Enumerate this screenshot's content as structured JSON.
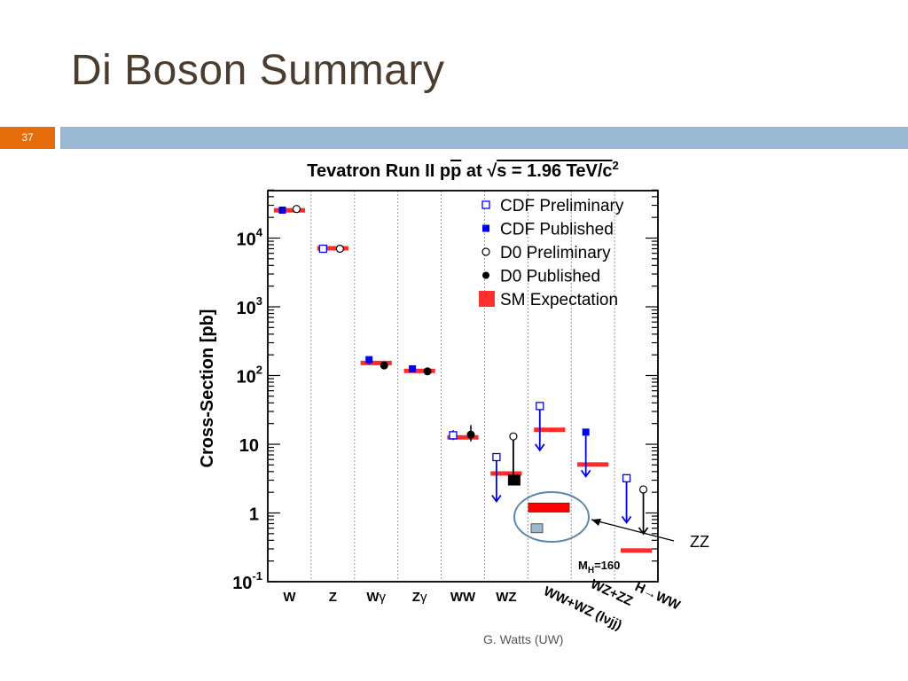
{
  "slide": {
    "title": "Di Boson Summary",
    "slide_number": "37",
    "credit": "G. Watts (UW)",
    "annotation": "ZZ",
    "accent_color": "#e46c0a",
    "bar_color": "#9ab8d1"
  },
  "chart_data": {
    "type": "scatter",
    "title_parts": [
      "Tevatron Run II p",
      "p",
      " at ",
      "s = 1.96 TeV/c",
      "2"
    ],
    "ylabel": "Cross-Section [pb]",
    "yscale": "log",
    "ylim": [
      0.1,
      50000
    ],
    "yticks": [
      {
        "value": 10000,
        "base": "10",
        "exp": "4"
      },
      {
        "value": 1000,
        "base": "10",
        "exp": "3"
      },
      {
        "value": 100,
        "base": "10",
        "exp": "2"
      },
      {
        "value": 10,
        "base": "10",
        "exp": ""
      },
      {
        "value": 1,
        "base": "1",
        "exp": ""
      },
      {
        "value": 0.1,
        "base": "10",
        "exp": "-1"
      }
    ],
    "categories": [
      {
        "label": "W",
        "sub": ""
      },
      {
        "label": "Z",
        "sub": ""
      },
      {
        "label": "W",
        "sub": "γ"
      },
      {
        "label": "Z",
        "sub": "γ"
      },
      {
        "label": "WW",
        "sub": ""
      },
      {
        "label": "WZ",
        "sub": ""
      },
      {
        "label": "WW+WZ (lνjj)",
        "sub": ""
      },
      {
        "label": "WZ+ZZ",
        "sub": ""
      },
      {
        "label": "H→WW",
        "sub": ""
      }
    ],
    "legend": [
      {
        "label": "CDF Preliminary",
        "marker": "open-square"
      },
      {
        "label": "CDF Published",
        "marker": "filled-square"
      },
      {
        "label": "D0 Preliminary",
        "marker": "open-circle"
      },
      {
        "label": "D0 Published",
        "marker": "filled-circle"
      },
      {
        "label": "SM Expectation",
        "marker": "red-box"
      }
    ],
    "legend_position": "top-right",
    "sm_expectation": [
      {
        "category": 0,
        "value": 25000
      },
      {
        "category": 1,
        "value": 7000
      },
      {
        "category": 2,
        "value": 150
      },
      {
        "category": 3,
        "value": 115
      },
      {
        "category": 4,
        "value": 12.4
      },
      {
        "category": 5,
        "value": 3.7
      },
      {
        "category": 6,
        "value": 16
      },
      {
        "category": 7,
        "value": 5
      },
      {
        "category": 8,
        "value": 0.28
      }
    ],
    "zz_expectation": [
      {
        "category": 6,
        "value": 1.2
      }
    ],
    "zz_cdf": [
      {
        "category": 6,
        "value": 0.6
      }
    ],
    "higgs_label": "M_H=160",
    "series": [
      {
        "name": "CDF Preliminary",
        "marker": "open-square",
        "points": [
          {
            "category": 1,
            "value": 7000
          },
          {
            "category": 4,
            "value": 13.5,
            "err": [
              11.5,
              16
            ]
          },
          {
            "category": 5,
            "value": 6.5,
            "limit": true
          },
          {
            "category": 6,
            "value": 36,
            "limit": true
          },
          {
            "category": 8,
            "value": 3.2,
            "limit": true
          }
        ]
      },
      {
        "name": "CDF Published",
        "marker": "filled-square",
        "points": [
          {
            "category": 0,
            "value": 25500
          },
          {
            "category": 2,
            "value": 170,
            "err": [
              145,
              190
            ]
          },
          {
            "category": 3,
            "value": 125
          },
          {
            "category": 7,
            "value": 15,
            "limit": true
          }
        ]
      },
      {
        "name": "D0 Preliminary",
        "marker": "open-circle",
        "points": [
          {
            "category": 0,
            "value": 26500
          },
          {
            "category": 1,
            "value": 7000
          },
          {
            "category": 5,
            "value": 13,
            "limit": true
          },
          {
            "category": 8,
            "value": 2.2,
            "limit": true
          }
        ]
      },
      {
        "name": "D0 Published",
        "marker": "filled-circle",
        "points": [
          {
            "category": 2,
            "value": 140
          },
          {
            "category": 3,
            "value": 115
          },
          {
            "category": 4,
            "value": 13.8,
            "err": [
              11,
              19
            ]
          },
          {
            "category": 5,
            "value": 3.0,
            "big": true
          }
        ]
      }
    ]
  }
}
